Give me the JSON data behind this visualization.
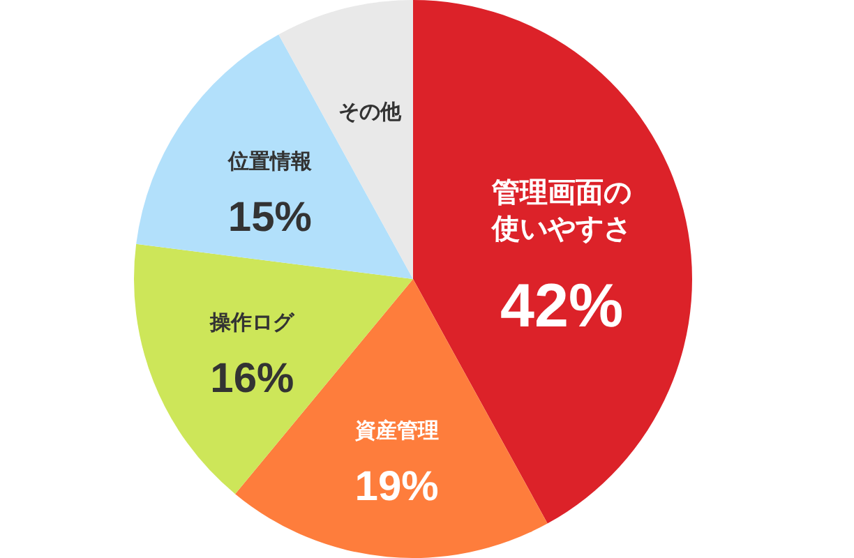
{
  "chart_data": {
    "type": "pie",
    "categories": [
      "管理画面の使いやすさ",
      "資産管理",
      "操作ログ",
      "位置情報",
      "その他"
    ],
    "values": [
      42,
      19,
      16,
      15,
      8
    ],
    "value_labels": [
      "42%",
      "19%",
      "16%",
      "15%",
      null
    ],
    "colors": [
      "#dc2229",
      "#fe7d3c",
      "#cde659",
      "#b2e0fb",
      "#e9e9e9"
    ]
  }
}
